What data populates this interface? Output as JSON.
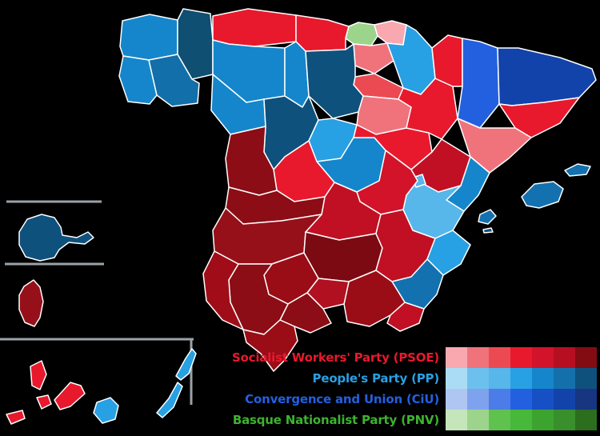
{
  "page": {
    "background": "#000000"
  },
  "map": {
    "description": "Spain general election results by province (choropleth map with Canary Islands, Ceuta and Melilla insets)",
    "border_color": "#ffffff",
    "inset_line_color": "#9aa2a8",
    "provinces": [
      {
        "id": "coruna",
        "name": "A Coruña",
        "party": "PP",
        "fill": "#1586cb"
      },
      {
        "id": "lugo",
        "name": "Lugo",
        "party": "PP",
        "fill": "#0e4f72"
      },
      {
        "id": "pontevedra",
        "name": "Pontevedra",
        "party": "PP",
        "fill": "#1586cb"
      },
      {
        "id": "ourense",
        "name": "Ourense",
        "party": "PP",
        "fill": "#136fa9"
      },
      {
        "id": "asturias",
        "name": "Asturias",
        "party": "PSOE",
        "fill": "#e8192d"
      },
      {
        "id": "cantabria",
        "name": "Cantabria",
        "party": "PSOE",
        "fill": "#e8192d"
      },
      {
        "id": "vizcaya",
        "name": "Biscay",
        "party": "PNV",
        "fill": "#9cd48b"
      },
      {
        "id": "gipuzkoa",
        "name": "Gipuzkoa",
        "party": "PSOE",
        "fill": "#f9a8b0"
      },
      {
        "id": "alava",
        "name": "Álava",
        "party": "PSOE",
        "fill": "#f0737c"
      },
      {
        "id": "trevino",
        "name": "Treviño (Burgos exclave)",
        "party": "PP",
        "fill": "#0e517c"
      },
      {
        "id": "navarra",
        "name": "Navarre",
        "party": "PP",
        "fill": "#28a0e4"
      },
      {
        "id": "rioja",
        "name": "La Rioja",
        "party": "PSOE",
        "fill": "#ec4a52"
      },
      {
        "id": "leon",
        "name": "León",
        "party": "PP",
        "fill": "#1586cb"
      },
      {
        "id": "palencia",
        "name": "Palencia",
        "party": "PP",
        "fill": "#1586cb"
      },
      {
        "id": "burgos",
        "name": "Burgos",
        "party": "PP",
        "fill": "#0e517c"
      },
      {
        "id": "soria",
        "name": "Soria",
        "party": "PSOE",
        "fill": "#f0737c"
      },
      {
        "id": "zamora",
        "name": "Zamora",
        "party": "PP",
        "fill": "#1586cb"
      },
      {
        "id": "valladolid",
        "name": "Valladolid",
        "party": "PP",
        "fill": "#0e517c"
      },
      {
        "id": "segovia",
        "name": "Segovia",
        "party": "PP",
        "fill": "#28a0e4"
      },
      {
        "id": "madrid",
        "name": "Madrid",
        "party": "PP",
        "fill": "#1586cb"
      },
      {
        "id": "guadalajara",
        "name": "Guadalajara",
        "party": "PSOE",
        "fill": "#e8192d"
      },
      {
        "id": "zaragoza",
        "name": "Zaragoza",
        "party": "PSOE",
        "fill": "#e8192d"
      },
      {
        "id": "huesca",
        "name": "Huesca",
        "party": "PSOE",
        "fill": "#e8192d"
      },
      {
        "id": "lleida",
        "name": "Lleida",
        "party": "CiU",
        "fill": "#2360e0"
      },
      {
        "id": "girona",
        "name": "Girona",
        "party": "CiU",
        "fill": "#1243aa"
      },
      {
        "id": "barcelona",
        "name": "Barcelona",
        "party": "PSOE",
        "fill": "#e8192d"
      },
      {
        "id": "tarragona",
        "name": "Tarragona",
        "party": "PSOE",
        "fill": "#f0737c"
      },
      {
        "id": "teruel",
        "name": "Teruel",
        "party": "PSOE",
        "fill": "#c11023"
      },
      {
        "id": "castellon",
        "name": "Castellón",
        "party": "PP",
        "fill": "#1586cb"
      },
      {
        "id": "valencia",
        "name": "Valencia",
        "party": "PP",
        "fill": "#57b6ea"
      },
      {
        "id": "ademuz",
        "name": "Valencia (Rincón de Ademuz)",
        "party": "PP",
        "fill": "#57b6ea"
      },
      {
        "id": "cuenca",
        "name": "Cuenca",
        "party": "PSOE",
        "fill": "#d2132a"
      },
      {
        "id": "toledo",
        "name": "Toledo",
        "party": "PSOE",
        "fill": "#c11023"
      },
      {
        "id": "avila",
        "name": "Ávila",
        "party": "PSOE",
        "fill": "#e8192d"
      },
      {
        "id": "salamanca",
        "name": "Salamanca",
        "party": "PSOE",
        "fill": "#8c0d15"
      },
      {
        "id": "caceres",
        "name": "Cáceres",
        "party": "PSOE",
        "fill": "#8c0d15"
      },
      {
        "id": "badajoz",
        "name": "Badajoz",
        "party": "PSOE",
        "fill": "#96101a"
      },
      {
        "id": "ciudadreal",
        "name": "Ciudad Real",
        "party": "PSOE",
        "fill": "#7c0a12"
      },
      {
        "id": "albacete",
        "name": "Albacete",
        "party": "PSOE",
        "fill": "#c11023"
      },
      {
        "id": "alicante",
        "name": "Alicante",
        "party": "PP",
        "fill": "#28a0e4"
      },
      {
        "id": "murcia",
        "name": "Murcia",
        "party": "PP",
        "fill": "#1371b0"
      },
      {
        "id": "granada",
        "name": "Granada",
        "party": "PSOE",
        "fill": "#9a0d16"
      },
      {
        "id": "almeria",
        "name": "Almería",
        "party": "PSOE",
        "fill": "#c11023"
      },
      {
        "id": "jaen",
        "name": "Jaén",
        "party": "PSOE",
        "fill": "#b01020"
      },
      {
        "id": "cordoba",
        "name": "Córdoba",
        "party": "PSOE",
        "fill": "#9a0d16"
      },
      {
        "id": "malaga",
        "name": "Málaga",
        "party": "PSOE",
        "fill": "#8c0d15"
      },
      {
        "id": "sevilla",
        "name": "Seville",
        "party": "PSOE",
        "fill": "#8c0d15"
      },
      {
        "id": "huelva",
        "name": "Huelva",
        "party": "PSOE",
        "fill": "#a00d18"
      },
      {
        "id": "cadiz",
        "name": "Cádiz",
        "party": "PSOE",
        "fill": "#9a0d16"
      },
      {
        "id": "mallorca",
        "name": "Mallorca",
        "party": "PP",
        "fill": "#1371b0"
      },
      {
        "id": "menorca",
        "name": "Menorca",
        "party": "PP",
        "fill": "#1371b0"
      },
      {
        "id": "ibiza",
        "name": "Ibiza",
        "party": "PP",
        "fill": "#1371b0"
      },
      {
        "id": "formentera",
        "name": "Formentera",
        "party": "PP",
        "fill": "#0e517c"
      },
      {
        "id": "lapalma",
        "name": "La Palma",
        "party": "PSOE",
        "fill": "#e8192d"
      },
      {
        "id": "gomera",
        "name": "La Gomera",
        "party": "PSOE",
        "fill": "#e8192d"
      },
      {
        "id": "hierro",
        "name": "El Hierro",
        "party": "PSOE",
        "fill": "#e8192d"
      },
      {
        "id": "tenerife",
        "name": "Tenerife",
        "party": "PSOE",
        "fill": "#e8192d"
      },
      {
        "id": "grancanaria",
        "name": "Gran Canaria",
        "party": "PP",
        "fill": "#28a0e4"
      },
      {
        "id": "fuerteventura",
        "name": "Fuerteventura",
        "party": "PP",
        "fill": "#28a0e4"
      },
      {
        "id": "lanzarote",
        "name": "Lanzarote",
        "party": "PP",
        "fill": "#28a0e4"
      },
      {
        "id": "ceuta",
        "name": "Ceuta",
        "party": "PP",
        "fill": "#0e517c"
      },
      {
        "id": "melilla",
        "name": "Melilla",
        "party": "PSOE",
        "fill": "#96101a"
      }
    ]
  },
  "legend": {
    "rows": [
      {
        "id": "psoe",
        "label": "Socialist Workers' Party (PSOE)",
        "label_color": "#e8192d",
        "swatches": [
          "#f9a8b0",
          "#f0737c",
          "#ec4a52",
          "#e8192d",
          "#d2132a",
          "#b60f22",
          "#830c13"
        ]
      },
      {
        "id": "pp",
        "label": "People's Party (PP)",
        "label_color": "#28a0e4",
        "swatches": [
          "#aadcf5",
          "#6cc0ed",
          "#57b6ea",
          "#28a0e4",
          "#1586cb",
          "#1470ab",
          "#0e517c"
        ]
      },
      {
        "id": "ciu",
        "label": "Convergence and Union (CiU)",
        "label_color": "#2360e0",
        "swatches": [
          "#b0c6f2",
          "#7fa2ee",
          "#4c7ce7",
          "#2360e0",
          "#1750c5",
          "#1243aa",
          "#173581"
        ]
      },
      {
        "id": "pnv",
        "label": "Basque Nationalist Party (PNV)",
        "label_color": "#3db32f",
        "swatches": [
          "#c4e6ba",
          "#9cd48b",
          "#5fc24f",
          "#47b83a",
          "#3da32f",
          "#388f2c",
          "#2a6e1e"
        ]
      }
    ]
  }
}
